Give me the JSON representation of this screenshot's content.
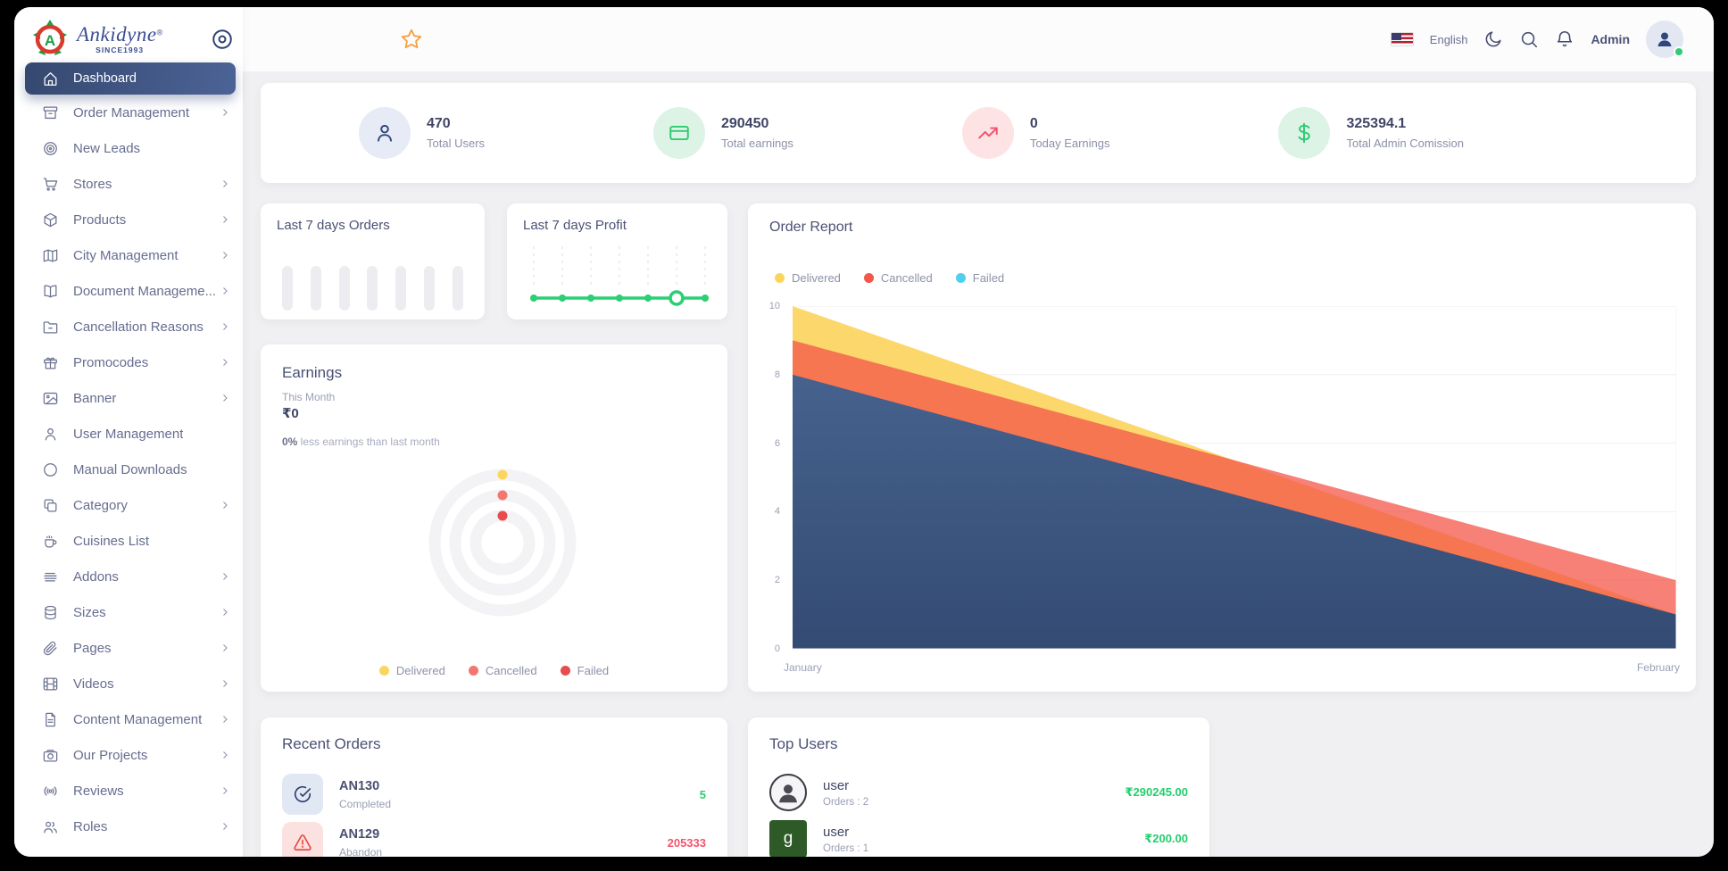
{
  "brand": {
    "name": "Ankidyne",
    "reg": "®",
    "since": "SINCE1993"
  },
  "header": {
    "language": "English",
    "admin_label": "Admin"
  },
  "sidebar": {
    "items": [
      {
        "label": "Dashboard",
        "icon": "home-icon",
        "active": true,
        "chevron": false
      },
      {
        "label": "Order Management",
        "icon": "archive-box-icon",
        "active": false,
        "chevron": true
      },
      {
        "label": "New Leads",
        "icon": "target-icon",
        "active": false,
        "chevron": false
      },
      {
        "label": "Stores",
        "icon": "shopping-cart-icon",
        "active": false,
        "chevron": true
      },
      {
        "label": "Products",
        "icon": "package-icon",
        "active": false,
        "chevron": true
      },
      {
        "label": "City Management",
        "icon": "map-icon",
        "active": false,
        "chevron": true
      },
      {
        "label": "Document Manageme...",
        "icon": "book-open-icon",
        "active": false,
        "chevron": true
      },
      {
        "label": "Cancellation Reasons",
        "icon": "folder-minus-icon",
        "active": false,
        "chevron": true
      },
      {
        "label": "Promocodes",
        "icon": "gift-icon",
        "active": false,
        "chevron": true
      },
      {
        "label": "Banner",
        "icon": "image-icon",
        "active": false,
        "chevron": true
      },
      {
        "label": "User Management",
        "icon": "user-icon",
        "active": false,
        "chevron": false
      },
      {
        "label": "Manual Downloads",
        "icon": "circle-icon",
        "active": false,
        "chevron": false
      },
      {
        "label": "Category",
        "icon": "copy-icon",
        "active": false,
        "chevron": true
      },
      {
        "label": "Cuisines List",
        "icon": "coffee-cup-icon",
        "active": false,
        "chevron": false
      },
      {
        "label": "Addons",
        "icon": "menu-lines-icon",
        "active": false,
        "chevron": true
      },
      {
        "label": "Sizes",
        "icon": "database-icon",
        "active": false,
        "chevron": true
      },
      {
        "label": "Pages",
        "icon": "paperclip-icon",
        "active": false,
        "chevron": true
      },
      {
        "label": "Videos",
        "icon": "film-icon",
        "active": false,
        "chevron": true
      },
      {
        "label": "Content Management",
        "icon": "file-text-icon",
        "active": false,
        "chevron": true
      },
      {
        "label": "Our Projects",
        "icon": "camera-icon",
        "active": false,
        "chevron": true
      },
      {
        "label": "Reviews",
        "icon": "broadcast-icon",
        "active": false,
        "chevron": true
      },
      {
        "label": "Roles",
        "icon": "users-icon",
        "active": false,
        "chevron": true
      }
    ]
  },
  "stats": {
    "items": [
      {
        "value": "470",
        "label": "Total Users",
        "icon": "user-icon",
        "bubble_bg": "#e7ebf5",
        "icon_color": "#30477c"
      },
      {
        "value": "290450",
        "label": "Total earnings",
        "icon": "credit-card-icon",
        "bubble_bg": "#ddf3e6",
        "icon_color": "#2ecc71"
      },
      {
        "value": "0",
        "label": "Today Earnings",
        "icon": "trending-up-icon",
        "bubble_bg": "#fde3e3",
        "icon_color": "#f1536e"
      },
      {
        "value": "325394.1",
        "label": "Total Admin Comission",
        "icon": "dollar-icon",
        "bubble_bg": "#ddf3e6",
        "icon_color": "#2ecc71"
      }
    ]
  },
  "mini_orders": {
    "title": "Last 7 days Orders",
    "bar_count": 7,
    "bar_color": "#ededf1"
  },
  "mini_profit": {
    "title": "Last 7 days Profit",
    "point_count": 7,
    "line_color": "#2bcf74",
    "highlighted_point_index": 5
  },
  "order_report": {
    "title": "Order Report",
    "legend": [
      {
        "label": "Delivered",
        "color": "#fcd45c"
      },
      {
        "label": "Cancelled",
        "color": "#f4564a"
      },
      {
        "label": "Failed",
        "color": "#4fd0ee"
      }
    ],
    "chart_data": {
      "type": "area",
      "x": [
        "January",
        "February"
      ],
      "series": [
        {
          "name": "Delivered",
          "values": [
            10,
            1
          ],
          "color": "#fcd45c",
          "opacity": 0.9,
          "gradient": false
        },
        {
          "name": "Cancelled",
          "values": [
            9,
            2
          ],
          "color": "#f4564a",
          "opacity": 0.75,
          "gradient": false
        },
        {
          "name": "Failed",
          "values": [
            8,
            1
          ],
          "color": "#3a5685",
          "opacity": 0.97,
          "gradient": true
        }
      ],
      "ylim": [
        0,
        10
      ],
      "yticks": [
        0,
        2,
        4,
        6,
        8,
        10
      ],
      "grid": true,
      "legend_position": "top-left"
    }
  },
  "earnings": {
    "title": "Earnings",
    "period": "This Month",
    "amount": "₹0",
    "note_bold": "0%",
    "note_rest": " less earnings than last month",
    "legend": [
      {
        "label": "Delivered",
        "color": "#fbd55f"
      },
      {
        "label": "Cancelled",
        "color": "#f4766f"
      },
      {
        "label": "Failed",
        "color": "#e84c4c"
      }
    ]
  },
  "recent_orders": {
    "title": "Recent Orders",
    "rows": [
      {
        "id": "AN130",
        "status": "Completed",
        "value": "5",
        "value_color": "#2ecc71",
        "icon": "check-circle-icon",
        "icon_bg": "#e2e8f3",
        "icon_color": "#2c3e70"
      },
      {
        "id": "AN129",
        "status": "Abandon",
        "value": "205333",
        "value_color": "#f1556c",
        "icon": "alert-triangle-icon",
        "icon_bg": "#fbe2e1",
        "icon_color": "#e8473e"
      }
    ]
  },
  "top_users": {
    "title": "Top Users",
    "rows": [
      {
        "name": "user",
        "orders": "Orders : 2",
        "amount": "₹290245.00",
        "avatar": "person-photo",
        "avatar_letter": ""
      },
      {
        "name": "user",
        "orders": "Orders : 1",
        "amount": "₹200.00",
        "avatar": "letter-square",
        "avatar_letter": "g"
      }
    ]
  }
}
